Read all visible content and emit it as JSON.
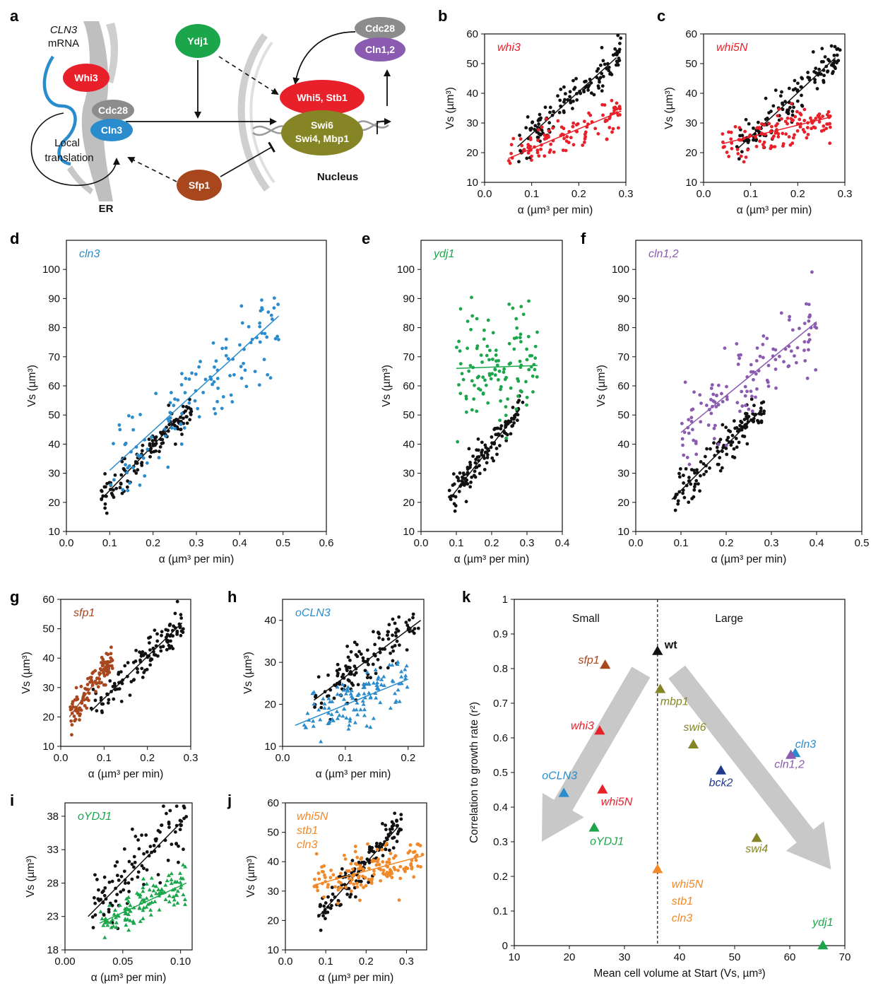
{
  "panel_letters": [
    "a",
    "b",
    "c",
    "d",
    "e",
    "f",
    "g",
    "h",
    "i",
    "j",
    "k"
  ],
  "colors": {
    "black": "#111111",
    "red": "#e8202a",
    "blue": "#2a8ccc",
    "green": "#1ca64c",
    "purple": "#8a5bb0",
    "brown": "#a8461e",
    "orange": "#f0892a",
    "olive": "#858526",
    "navy": "#1f3a8a",
    "arrow": "#c8c8c8"
  },
  "diagram": {
    "cln3_mrna_line1": "CLN3",
    "cln3_mrna_line2": "mRNA",
    "whi3": "Whi3",
    "cdc28_left": "Cdc28",
    "cln3": "Cln3",
    "local_translation_line1": "Local",
    "local_translation_line2": "translation",
    "er": "ER",
    "ydj1": "Ydj1",
    "sfp1": "Sfp1",
    "cdc28_right": "Cdc28",
    "cln12": "Cln1,2",
    "whi5_stb1": "Whi5, Stb1",
    "swi6": "Swi6",
    "swi4_mbp1": "Swi4, Mbp1",
    "nucleus": "Nucleus"
  },
  "chart_data": [
    {
      "id": "b",
      "type": "scatter",
      "label": "whi3",
      "label_color": "#e8202a",
      "xlabel": "α (µm³ per min)",
      "ylabel": "Vs (µm³)",
      "xlim": [
        0.0,
        0.3
      ],
      "ylim": [
        10,
        60
      ],
      "xticks": [
        "0.0",
        "0.1",
        "0.2",
        "0.3"
      ],
      "yticks": [
        "10",
        "20",
        "30",
        "40",
        "50",
        "60"
      ],
      "series": [
        {
          "color": "#111111",
          "n": 130,
          "x_range": [
            0.07,
            0.29
          ],
          "fit": [
            [
              0.07,
              22
            ],
            [
              0.28,
              52
            ]
          ],
          "spread": 3.0
        },
        {
          "color": "#e8202a",
          "n": 110,
          "x_range": [
            0.05,
            0.29
          ],
          "fit": [
            [
              0.05,
              18
            ],
            [
              0.29,
              34
            ]
          ],
          "spread": 3.5
        }
      ]
    },
    {
      "id": "c",
      "type": "scatter",
      "label": "whi5N",
      "label_color": "#e8202a",
      "xlabel": "α (µm³ per min)",
      "ylabel": "Vs (µm³)",
      "xlim": [
        0.0,
        0.3
      ],
      "ylim": [
        10,
        60
      ],
      "xticks": [
        "0.0",
        "0.1",
        "0.2",
        "0.3"
      ],
      "yticks": [
        "10",
        "20",
        "30",
        "40",
        "50",
        "60"
      ],
      "series": [
        {
          "color": "#111111",
          "n": 130,
          "x_range": [
            0.07,
            0.29
          ],
          "fit": [
            [
              0.07,
              21
            ],
            [
              0.28,
              52
            ]
          ],
          "spread": 3.0
        },
        {
          "color": "#e8202a",
          "n": 120,
          "x_range": [
            0.04,
            0.27
          ],
          "fit": [
            [
              0.04,
              23
            ],
            [
              0.27,
              32
            ]
          ],
          "spread": 3.0
        }
      ]
    },
    {
      "id": "d",
      "type": "scatter",
      "label": "cln3",
      "label_color": "#2a8ccc",
      "xlabel": "α (µm³ per min)",
      "ylabel": "Vs (µm³)",
      "xlim": [
        0.0,
        0.6
      ],
      "ylim": [
        10,
        110
      ],
      "xticks": [
        "0.0",
        "0.1",
        "0.2",
        "0.3",
        "0.4",
        "0.5",
        "0.6"
      ],
      "yticks": [
        "10",
        "20",
        "30",
        "40",
        "50",
        "60",
        "70",
        "80",
        "90",
        "100"
      ],
      "series": [
        {
          "color": "#111111",
          "n": 130,
          "x_range": [
            0.08,
            0.29
          ],
          "fit": [
            [
              0.08,
              21
            ],
            [
              0.28,
              52
            ]
          ],
          "spread": 3.0
        },
        {
          "color": "#2a8ccc",
          "n": 130,
          "x_range": [
            0.1,
            0.49
          ],
          "fit": [
            [
              0.1,
              31
            ],
            [
              0.49,
              84
            ]
          ],
          "spread": 8.0
        }
      ]
    },
    {
      "id": "e",
      "type": "scatter",
      "label": "ydj1",
      "label_color": "#1ca64c",
      "xlabel": "α (µm³ per min)",
      "ylabel": "Vs (µm³)",
      "xlim": [
        0.0,
        0.4
      ],
      "ylim": [
        10,
        110
      ],
      "xticks": [
        "0.0",
        "0.1",
        "0.2",
        "0.3",
        "0.4"
      ],
      "yticks": [
        "10",
        "20",
        "30",
        "40",
        "50",
        "60",
        "70",
        "80",
        "90",
        "100"
      ],
      "series": [
        {
          "color": "#111111",
          "n": 130,
          "x_range": [
            0.08,
            0.29
          ],
          "fit": [
            [
              0.08,
              21
            ],
            [
              0.28,
              52
            ]
          ],
          "spread": 3.0
        },
        {
          "color": "#1ca64c",
          "n": 120,
          "x_range": [
            0.1,
            0.33
          ],
          "fit": [
            [
              0.1,
              66
            ],
            [
              0.33,
              67
            ]
          ],
          "spread": 11.0
        }
      ]
    },
    {
      "id": "f",
      "type": "scatter",
      "label": "cln1,2",
      "label_color": "#8a5bb0",
      "xlabel": "α (µm³ per min)",
      "ylabel": "Vs (µm³)",
      "xlim": [
        0.0,
        0.5
      ],
      "ylim": [
        10,
        110
      ],
      "xticks": [
        "0.0",
        "0.1",
        "0.2",
        "0.3",
        "0.4",
        "0.5"
      ],
      "yticks": [
        "10",
        "20",
        "30",
        "40",
        "50",
        "60",
        "70",
        "80",
        "90",
        "100"
      ],
      "series": [
        {
          "color": "#111111",
          "n": 130,
          "x_range": [
            0.08,
            0.29
          ],
          "fit": [
            [
              0.08,
              21
            ],
            [
              0.28,
              52
            ]
          ],
          "spread": 3.0
        },
        {
          "color": "#8a5bb0",
          "n": 130,
          "x_range": [
            0.1,
            0.4
          ],
          "fit": [
            [
              0.1,
              44
            ],
            [
              0.4,
              82
            ]
          ],
          "spread": 7.0
        }
      ]
    },
    {
      "id": "g",
      "type": "scatter",
      "label": "sfp1",
      "label_color": "#a8461e",
      "xlabel": "α (µm³ per min)",
      "ylabel": "Vs (µm³)",
      "xlim": [
        0.0,
        0.3
      ],
      "ylim": [
        10,
        60
      ],
      "xticks": [
        "0.0",
        "0.1",
        "0.2",
        "0.3"
      ],
      "yticks": [
        "10",
        "20",
        "30",
        "40",
        "50",
        "60"
      ],
      "series": [
        {
          "color": "#111111",
          "n": 120,
          "x_range": [
            0.07,
            0.29
          ],
          "fit": [
            [
              0.07,
              22
            ],
            [
              0.28,
              52
            ]
          ],
          "spread": 3.0
        },
        {
          "color": "#a8461e",
          "n": 110,
          "x_range": [
            0.02,
            0.12
          ],
          "fit": [
            [
              0.02,
              20
            ],
            [
              0.12,
              40
            ]
          ],
          "spread": 3.0
        }
      ]
    },
    {
      "id": "h",
      "type": "scatter",
      "label": "oCLN3",
      "label_color": "#2a8ccc",
      "xlabel": "α (µm³ per min)",
      "ylabel": "Vs (µm³)",
      "xlim": [
        0.0,
        0.225
      ],
      "ylim": [
        10,
        45
      ],
      "xticks": [
        "0.0",
        "0.1",
        "0.2"
      ],
      "yticks": [
        "10",
        "20",
        "30",
        "40"
      ],
      "series": [
        {
          "color": "#111111",
          "n": 130,
          "x_range": [
            0.05,
            0.22
          ],
          "fit": [
            [
              0.05,
              21
            ],
            [
              0.22,
              40
            ]
          ],
          "spread": 3.0
        },
        {
          "color": "#2a8ccc",
          "n": 120,
          "marker": "triangle",
          "x_range": [
            0.02,
            0.2
          ],
          "fit": [
            [
              0.02,
              15
            ],
            [
              0.2,
              26
            ]
          ],
          "spread": 3.0
        }
      ]
    },
    {
      "id": "i",
      "type": "scatter",
      "label": "oYDJ1",
      "label_color": "#1ca64c",
      "xlabel": "α (µm³ per min)",
      "ylabel": "Vs (µm³)",
      "xlim": [
        0.0,
        0.11
      ],
      "ylim": [
        18,
        40
      ],
      "xticks": [
        "0.00",
        "0.05",
        "0.10"
      ],
      "yticks": [
        "18",
        "23",
        "28",
        "33",
        "38"
      ],
      "series": [
        {
          "color": "#111111",
          "n": 110,
          "x_range": [
            0.02,
            0.105
          ],
          "fit": [
            [
              0.02,
              23
            ],
            [
              0.1,
              37
            ]
          ],
          "spread": 2.5
        },
        {
          "color": "#1ca64c",
          "n": 120,
          "marker": "triangle",
          "x_range": [
            0.03,
            0.105
          ],
          "fit": [
            [
              0.03,
              22
            ],
            [
              0.105,
              28
            ]
          ],
          "spread": 1.5
        }
      ]
    },
    {
      "id": "j",
      "type": "scatter",
      "label": "whi5N stb1 cln3",
      "label_lines": [
        "whi5N",
        "stb1",
        "cln3"
      ],
      "label_color": "#f0892a",
      "xlabel": "α (µm³ per min)",
      "ylabel": "Vs (µm³)",
      "xlim": [
        0.0,
        0.35
      ],
      "ylim": [
        10,
        60
      ],
      "xticks": [
        "0.0",
        "0.1",
        "0.2",
        "0.3"
      ],
      "yticks": [
        "10",
        "20",
        "30",
        "40",
        "50",
        "60"
      ],
      "series": [
        {
          "color": "#111111",
          "n": 130,
          "x_range": [
            0.08,
            0.29
          ],
          "fit": [
            [
              0.08,
              21
            ],
            [
              0.28,
              52
            ]
          ],
          "spread": 3.0
        },
        {
          "color": "#f0892a",
          "n": 150,
          "x_range": [
            0.07,
            0.34
          ],
          "fit": [
            [
              0.07,
              32
            ],
            [
              0.34,
              42
            ]
          ],
          "spread": 4.0
        }
      ]
    },
    {
      "id": "k",
      "type": "scatter",
      "xlabel": "Mean cell volume at Start (Vs, µm³)",
      "ylabel": "Correlation to growth rate (r²)",
      "xlim": [
        10,
        70
      ],
      "ylim": [
        0,
        1
      ],
      "xticks": [
        "10",
        "20",
        "30",
        "40",
        "50",
        "60",
        "70"
      ],
      "yticks": [
        "0",
        "0.1",
        "0.2",
        "0.3",
        "0.4",
        "0.5",
        "0.6",
        "0.7",
        "0.8",
        "0.9",
        "1"
      ],
      "divider_x": 36,
      "region_left": "Small",
      "region_right": "Large",
      "points": [
        {
          "name": "wt",
          "x": 36,
          "y": 0.85,
          "color": "#111111"
        },
        {
          "name": "sfp1",
          "x": 26.5,
          "y": 0.81,
          "color": "#a8461e"
        },
        {
          "name": "mbp1",
          "x": 36.5,
          "y": 0.74,
          "color": "#858526"
        },
        {
          "name": "whi3",
          "x": 25.5,
          "y": 0.62,
          "color": "#e8202a"
        },
        {
          "name": "swi6",
          "x": 42.5,
          "y": 0.58,
          "color": "#858526"
        },
        {
          "name": "cln3",
          "x": 61,
          "y": 0.555,
          "color": "#2a8ccc"
        },
        {
          "name": "cln1,2",
          "x": 60.2,
          "y": 0.55,
          "color": "#8a5bb0"
        },
        {
          "name": "bck2",
          "x": 47.5,
          "y": 0.505,
          "color": "#1f3a8a"
        },
        {
          "name": "oCLN3",
          "x": 19,
          "y": 0.44,
          "color": "#2a8ccc"
        },
        {
          "name": "whi5N",
          "x": 26,
          "y": 0.45,
          "color": "#e8202a"
        },
        {
          "name": "oYDJ1",
          "x": 24.5,
          "y": 0.34,
          "color": "#1ca64c"
        },
        {
          "name": "swi4",
          "x": 54,
          "y": 0.31,
          "color": "#858526"
        },
        {
          "name": "whi5N stb1 cln3",
          "x": 36,
          "y": 0.22,
          "color": "#f0892a"
        },
        {
          "name": "ydj1",
          "x": 66,
          "y": 0.0,
          "color": "#1ca64c"
        }
      ]
    }
  ]
}
